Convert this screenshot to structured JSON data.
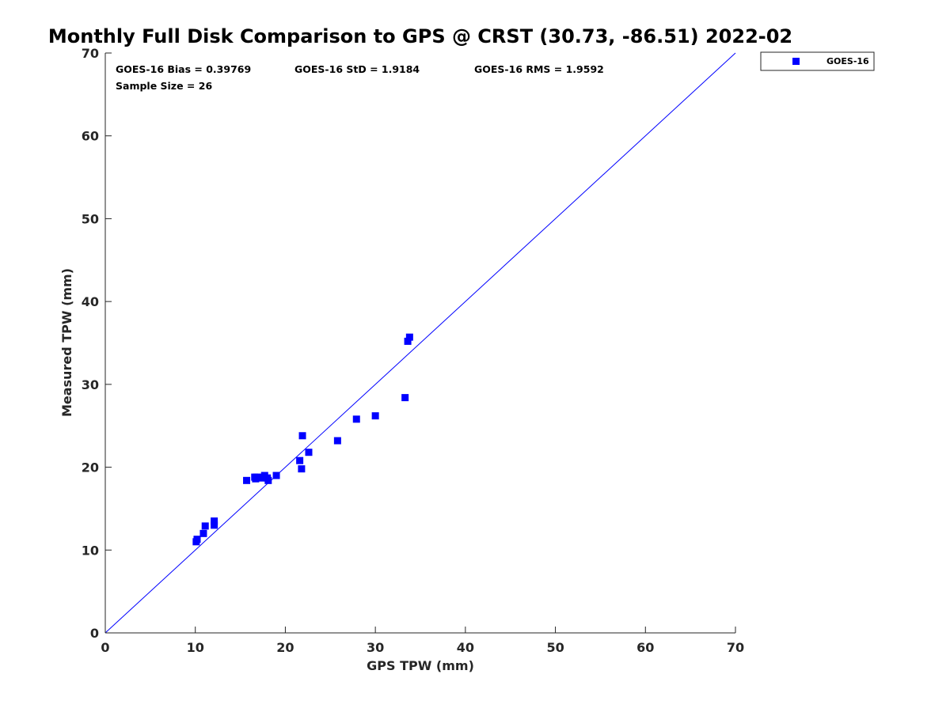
{
  "chart_data": {
    "type": "scatter",
    "title": "Monthly Full Disk Comparison to GPS @ CRST (30.73, -86.51) 2022-02",
    "xlabel": "GPS TPW (mm)",
    "ylabel": "Measured TPW (mm)",
    "xlim": [
      0,
      70
    ],
    "ylim": [
      0,
      70
    ],
    "xticks": [
      0,
      10,
      20,
      30,
      40,
      50,
      60,
      70
    ],
    "yticks": [
      0,
      10,
      20,
      30,
      40,
      50,
      60,
      70
    ],
    "grid": false,
    "legend_position": "outside-top-right",
    "reference_line": {
      "kind": "one-to-one",
      "from": [
        0,
        0
      ],
      "to": [
        70,
        70
      ],
      "color": "#0000ff"
    },
    "annotations": [
      "GOES-16 Bias = 0.39769",
      "GOES-16 StD = 1.9184",
      "GOES-16 RMS = 1.9592",
      "Sample Size = 26"
    ],
    "series": [
      {
        "name": "GOES-16",
        "color": "#0000ff",
        "marker": "square",
        "points": [
          [
            10.1,
            11.0
          ],
          [
            10.2,
            11.3
          ],
          [
            10.9,
            12.0
          ],
          [
            11.1,
            12.9
          ],
          [
            12.1,
            13.0
          ],
          [
            12.1,
            13.5
          ],
          [
            15.7,
            18.4
          ],
          [
            16.7,
            18.6
          ],
          [
            16.8,
            18.8
          ],
          [
            17.3,
            18.7
          ],
          [
            17.7,
            19.0
          ],
          [
            18.0,
            18.7
          ],
          [
            18.1,
            18.4
          ],
          [
            19.0,
            19.0
          ],
          [
            21.6,
            20.8
          ],
          [
            21.8,
            19.8
          ],
          [
            21.9,
            23.8
          ],
          [
            22.6,
            21.8
          ],
          [
            25.8,
            23.2
          ],
          [
            27.9,
            25.8
          ],
          [
            30.0,
            26.2
          ],
          [
            33.3,
            28.4
          ],
          [
            33.6,
            35.2
          ],
          [
            33.8,
            35.7
          ],
          [
            17.5,
            18.8
          ],
          [
            16.6,
            18.8
          ]
        ]
      }
    ]
  }
}
